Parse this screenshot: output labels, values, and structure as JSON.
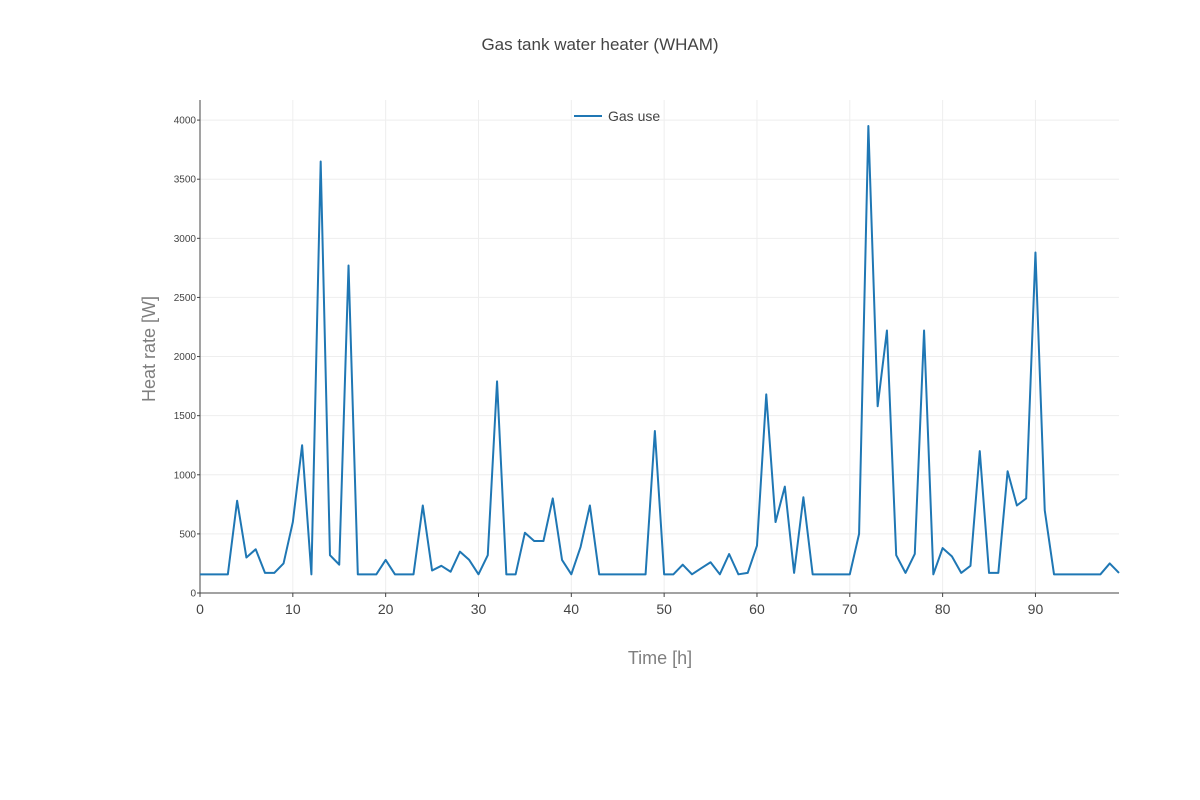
{
  "chart_data": {
    "type": "line",
    "title": "Gas tank water heater (WHAM)",
    "xlabel": "Time [h]",
    "ylabel": "Heat rate [W]",
    "xlim": [
      0,
      99
    ],
    "ylim": [
      0,
      4170
    ],
    "xticks": [
      0,
      10,
      20,
      30,
      40,
      50,
      60,
      70,
      80,
      90
    ],
    "yticks": [
      0,
      500,
      1000,
      1500,
      2000,
      2500,
      3000,
      3500,
      4000
    ],
    "grid": true,
    "legend": "top-center",
    "series": [
      {
        "name": "Gas use",
        "color": "#1f77b4",
        "x": [
          0,
          1,
          2,
          3,
          4,
          5,
          6,
          7,
          8,
          9,
          10,
          11,
          12,
          13,
          14,
          15,
          16,
          17,
          18,
          19,
          20,
          21,
          22,
          23,
          24,
          25,
          26,
          27,
          28,
          29,
          30,
          31,
          32,
          33,
          34,
          35,
          36,
          37,
          38,
          39,
          40,
          41,
          42,
          43,
          44,
          45,
          46,
          47,
          48,
          49,
          50,
          51,
          52,
          53,
          54,
          55,
          56,
          57,
          58,
          59,
          60,
          61,
          62,
          63,
          64,
          65,
          66,
          67,
          68,
          69,
          70,
          71,
          72,
          73,
          74,
          75,
          76,
          77,
          78,
          79,
          80,
          81,
          82,
          83,
          84,
          85,
          86,
          87,
          88,
          89,
          90,
          91,
          92,
          93,
          94,
          95,
          96,
          97,
          98,
          99
        ],
        "y": [
          158,
          158,
          158,
          158,
          780,
          300,
          370,
          170,
          170,
          250,
          600,
          1250,
          158,
          3650,
          320,
          240,
          2770,
          158,
          158,
          158,
          280,
          158,
          158,
          158,
          740,
          190,
          230,
          180,
          350,
          280,
          158,
          320,
          1790,
          158,
          158,
          510,
          440,
          440,
          800,
          280,
          158,
          390,
          740,
          158,
          158,
          158,
          158,
          158,
          158,
          1370,
          158,
          158,
          240,
          158,
          210,
          260,
          158,
          330,
          158,
          170,
          400,
          1680,
          600,
          900,
          170,
          810,
          158,
          158,
          158,
          158,
          158,
          500,
          3950,
          1580,
          2220,
          320,
          170,
          330,
          2220,
          158,
          380,
          310,
          170,
          230,
          1200,
          170,
          170,
          1030,
          740,
          800,
          2880,
          700,
          158,
          158,
          158,
          158,
          158,
          158,
          250,
          170
        ]
      }
    ]
  }
}
